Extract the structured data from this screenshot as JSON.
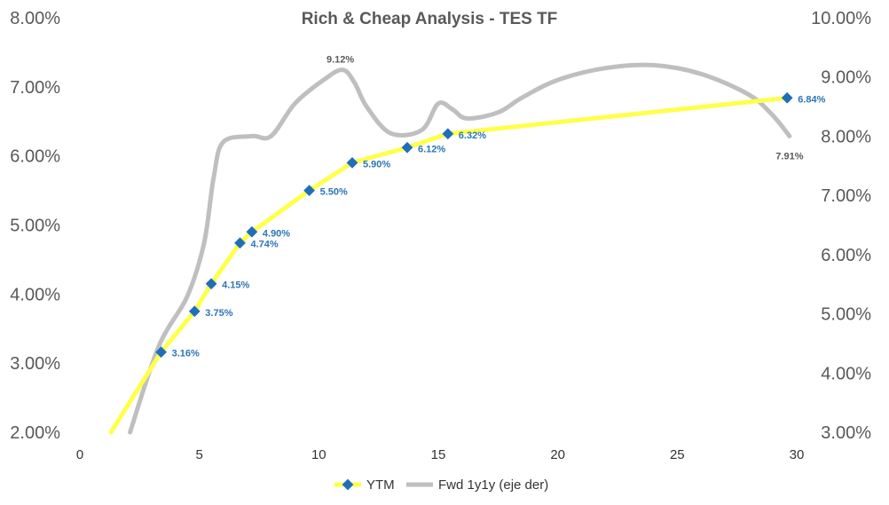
{
  "chart_data": {
    "type": "line",
    "title": "Rich & Cheap Analysis - TES TF",
    "x_axis": {
      "range": [
        0,
        30
      ],
      "ticks": [
        "0",
        "5",
        "10",
        "15",
        "20",
        "25",
        "30"
      ]
    },
    "y_left": {
      "range": [
        2,
        8
      ],
      "ticks": [
        "2.00%",
        "3.00%",
        "4.00%",
        "5.00%",
        "6.00%",
        "7.00%",
        "8.00%"
      ]
    },
    "y_right": {
      "range": [
        3,
        10
      ],
      "ticks": [
        "3.00%",
        "4.00%",
        "5.00%",
        "6.00%",
        "7.00%",
        "8.00%",
        "9.00%",
        "10.00%"
      ]
    },
    "grid": false,
    "legend": "bottom",
    "series": [
      {
        "name": "YTM",
        "axis": "left",
        "color": "#ffff4d",
        "marker_color": "#1f6fb8",
        "line": [
          [
            1.3,
            2.0
          ],
          [
            3.4,
            3.16
          ],
          [
            4.8,
            3.75
          ],
          [
            5.5,
            4.15
          ],
          [
            6.7,
            4.74
          ],
          [
            7.2,
            4.9
          ],
          [
            9.6,
            5.5
          ],
          [
            11.4,
            5.9
          ],
          [
            13.7,
            6.12
          ],
          [
            15.4,
            6.32
          ],
          [
            29.6,
            6.84
          ]
        ],
        "points": [
          {
            "x": 3.4,
            "y": 3.16,
            "label": "3.16%"
          },
          {
            "x": 4.8,
            "y": 3.75,
            "label": "3.75%"
          },
          {
            "x": 5.5,
            "y": 4.15,
            "label": "4.15%"
          },
          {
            "x": 6.7,
            "y": 4.74,
            "label": "4.74%"
          },
          {
            "x": 7.2,
            "y": 4.9,
            "label": "4.90%"
          },
          {
            "x": 9.6,
            "y": 5.5,
            "label": "5.50%"
          },
          {
            "x": 11.4,
            "y": 5.9,
            "label": "5.90%"
          },
          {
            "x": 13.7,
            "y": 6.12,
            "label": "6.12%"
          },
          {
            "x": 15.4,
            "y": 6.32,
            "label": "6.32%"
          },
          {
            "x": 29.6,
            "y": 6.84,
            "label": "6.84%"
          }
        ]
      },
      {
        "name": "Fwd 1y1y (eje der)",
        "axis": "right",
        "color": "#bfbfbf",
        "line": [
          [
            2.1,
            3.0
          ],
          [
            3.3,
            4.45
          ],
          [
            4.5,
            5.3
          ],
          [
            5.2,
            6.2
          ],
          [
            5.6,
            7.3
          ],
          [
            6.0,
            7.9
          ],
          [
            7.2,
            8.0
          ],
          [
            8.0,
            8.0
          ],
          [
            9.0,
            8.55
          ],
          [
            10.2,
            8.95
          ],
          [
            11.0,
            9.12
          ],
          [
            11.5,
            8.9
          ],
          [
            12.0,
            8.5
          ],
          [
            13.0,
            8.05
          ],
          [
            14.3,
            8.1
          ],
          [
            15.0,
            8.55
          ],
          [
            15.6,
            8.45
          ],
          [
            16.2,
            8.3
          ],
          [
            17.5,
            8.4
          ],
          [
            18.5,
            8.65
          ],
          [
            20.0,
            8.95
          ],
          [
            22.0,
            9.15
          ],
          [
            24.0,
            9.2
          ],
          [
            26.0,
            9.05
          ],
          [
            28.0,
            8.7
          ],
          [
            29.0,
            8.35
          ],
          [
            29.7,
            8.0
          ]
        ],
        "labels": [
          {
            "x": 10.9,
            "y": 9.12,
            "label": "9.12%"
          },
          {
            "x": 29.7,
            "y": 7.91,
            "label": "7.91%"
          }
        ]
      }
    ]
  }
}
